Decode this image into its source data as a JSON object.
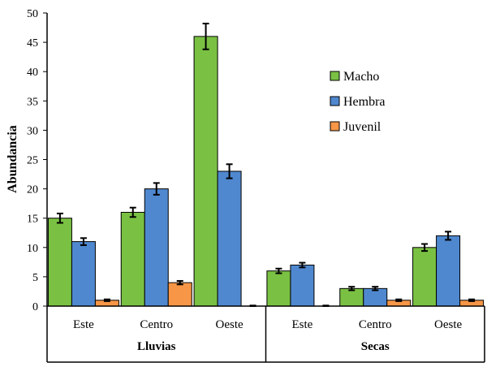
{
  "chart_data": {
    "type": "bar",
    "ylabel": "Abundancia",
    "ylim": [
      0,
      50
    ],
    "yticks": [
      0,
      5,
      10,
      15,
      20,
      25,
      30,
      35,
      40,
      45,
      50
    ],
    "legend_position": "right",
    "groups": [
      {
        "name": "Lluvias",
        "categories": [
          "Este",
          "Centro",
          "Oeste"
        ]
      },
      {
        "name": "Secas",
        "categories": [
          "Este",
          "Centro",
          "Oeste"
        ]
      }
    ],
    "categories": [
      "Este",
      "Centro",
      "Oeste",
      "Este",
      "Centro",
      "Oeste"
    ],
    "series": [
      {
        "name": "Macho",
        "color": "#7ac143",
        "values": [
          15,
          16,
          46,
          6,
          3,
          10
        ],
        "errors": [
          0.8,
          0.8,
          2.2,
          0.4,
          0.3,
          0.6
        ]
      },
      {
        "name": "Hembra",
        "color": "#4f88cf",
        "values": [
          11,
          20,
          23,
          7,
          3,
          12
        ],
        "errors": [
          0.6,
          1.0,
          1.2,
          0.4,
          0.3,
          0.7
        ]
      },
      {
        "name": "Juvenil",
        "color": "#f79646",
        "values": [
          1,
          4,
          0,
          0,
          1,
          1
        ],
        "errors": [
          0.15,
          0.3,
          0.1,
          0.1,
          0.15,
          0.15
        ]
      }
    ]
  }
}
